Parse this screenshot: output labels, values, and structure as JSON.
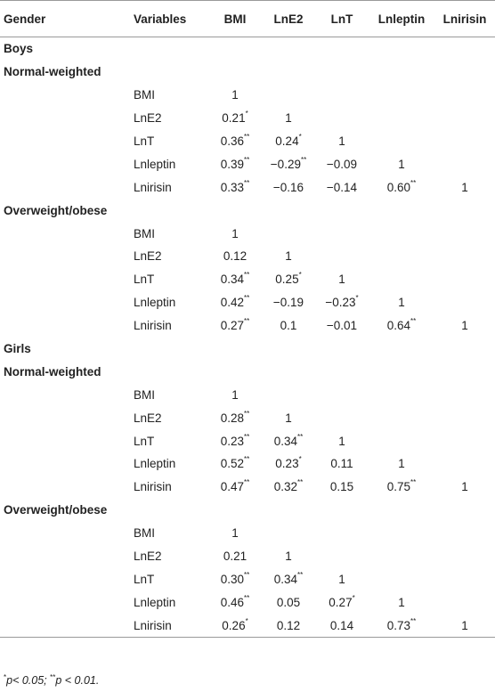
{
  "table": {
    "headers": [
      "Gender",
      "Variables",
      "BMI",
      "LnE2",
      "LnT",
      "Lnleptin",
      "Lnirisin"
    ],
    "groups": [
      {
        "gender": "Boys",
        "subgroups": [
          {
            "label": "Normal-weighted",
            "rows": [
              {
                "variable": "BMI",
                "cells": [
                  {
                    "v": "1",
                    "s": ""
                  },
                  {
                    "v": "",
                    "s": ""
                  },
                  {
                    "v": "",
                    "s": ""
                  },
                  {
                    "v": "",
                    "s": ""
                  },
                  {
                    "v": "",
                    "s": ""
                  }
                ]
              },
              {
                "variable": "LnE2",
                "cells": [
                  {
                    "v": "0.21",
                    "s": "*"
                  },
                  {
                    "v": "1",
                    "s": ""
                  },
                  {
                    "v": "",
                    "s": ""
                  },
                  {
                    "v": "",
                    "s": ""
                  },
                  {
                    "v": "",
                    "s": ""
                  }
                ]
              },
              {
                "variable": "LnT",
                "cells": [
                  {
                    "v": "0.36",
                    "s": "**"
                  },
                  {
                    "v": "0.24",
                    "s": "*"
                  },
                  {
                    "v": "1",
                    "s": ""
                  },
                  {
                    "v": "",
                    "s": ""
                  },
                  {
                    "v": "",
                    "s": ""
                  }
                ]
              },
              {
                "variable": "Lnleptin",
                "cells": [
                  {
                    "v": "0.39",
                    "s": "**"
                  },
                  {
                    "v": "−0.29",
                    "s": "**"
                  },
                  {
                    "v": "−0.09",
                    "s": ""
                  },
                  {
                    "v": "1",
                    "s": ""
                  },
                  {
                    "v": "",
                    "s": ""
                  }
                ]
              },
              {
                "variable": "Lnirisin",
                "cells": [
                  {
                    "v": "0.33",
                    "s": "**"
                  },
                  {
                    "v": "−0.16",
                    "s": ""
                  },
                  {
                    "v": "−0.14",
                    "s": ""
                  },
                  {
                    "v": "0.60",
                    "s": "**"
                  },
                  {
                    "v": "1",
                    "s": ""
                  }
                ]
              }
            ]
          },
          {
            "label": "Overweight/obese",
            "rows": [
              {
                "variable": "BMI",
                "cells": [
                  {
                    "v": "1",
                    "s": ""
                  },
                  {
                    "v": "",
                    "s": ""
                  },
                  {
                    "v": "",
                    "s": ""
                  },
                  {
                    "v": "",
                    "s": ""
                  },
                  {
                    "v": "",
                    "s": ""
                  }
                ]
              },
              {
                "variable": "LnE2",
                "cells": [
                  {
                    "v": "0.12",
                    "s": ""
                  },
                  {
                    "v": "1",
                    "s": ""
                  },
                  {
                    "v": "",
                    "s": ""
                  },
                  {
                    "v": "",
                    "s": ""
                  },
                  {
                    "v": "",
                    "s": ""
                  }
                ]
              },
              {
                "variable": "LnT",
                "cells": [
                  {
                    "v": "0.34",
                    "s": "**"
                  },
                  {
                    "v": "0.25",
                    "s": "*"
                  },
                  {
                    "v": "1",
                    "s": ""
                  },
                  {
                    "v": "",
                    "s": ""
                  },
                  {
                    "v": "",
                    "s": ""
                  }
                ]
              },
              {
                "variable": "Lnleptin",
                "cells": [
                  {
                    "v": "0.42",
                    "s": "**"
                  },
                  {
                    "v": "−0.19",
                    "s": ""
                  },
                  {
                    "v": "−0.23",
                    "s": "*"
                  },
                  {
                    "v": "1",
                    "s": ""
                  },
                  {
                    "v": "",
                    "s": ""
                  }
                ]
              },
              {
                "variable": "Lnirisin",
                "cells": [
                  {
                    "v": "0.27",
                    "s": "**"
                  },
                  {
                    "v": "0.1",
                    "s": ""
                  },
                  {
                    "v": "−0.01",
                    "s": ""
                  },
                  {
                    "v": "0.64",
                    "s": "**"
                  },
                  {
                    "v": "1",
                    "s": ""
                  }
                ]
              }
            ]
          }
        ]
      },
      {
        "gender": "Girls",
        "subgroups": [
          {
            "label": "Normal-weighted",
            "rows": [
              {
                "variable": "BMI",
                "cells": [
                  {
                    "v": "1",
                    "s": ""
                  },
                  {
                    "v": "",
                    "s": ""
                  },
                  {
                    "v": "",
                    "s": ""
                  },
                  {
                    "v": "",
                    "s": ""
                  },
                  {
                    "v": "",
                    "s": ""
                  }
                ]
              },
              {
                "variable": "LnE2",
                "cells": [
                  {
                    "v": "0.28",
                    "s": "**"
                  },
                  {
                    "v": "1",
                    "s": ""
                  },
                  {
                    "v": "",
                    "s": ""
                  },
                  {
                    "v": "",
                    "s": ""
                  },
                  {
                    "v": "",
                    "s": ""
                  }
                ]
              },
              {
                "variable": "LnT",
                "cells": [
                  {
                    "v": "0.23",
                    "s": "**"
                  },
                  {
                    "v": "0.34",
                    "s": "**"
                  },
                  {
                    "v": "1",
                    "s": ""
                  },
                  {
                    "v": "",
                    "s": ""
                  },
                  {
                    "v": "",
                    "s": ""
                  }
                ]
              },
              {
                "variable": "Lnleptin",
                "cells": [
                  {
                    "v": "0.52",
                    "s": "**"
                  },
                  {
                    "v": "0.23",
                    "s": "*"
                  },
                  {
                    "v": "0.11",
                    "s": ""
                  },
                  {
                    "v": "1",
                    "s": ""
                  },
                  {
                    "v": "",
                    "s": ""
                  }
                ]
              },
              {
                "variable": "Lnirisin",
                "cells": [
                  {
                    "v": "0.47",
                    "s": "**"
                  },
                  {
                    "v": "0.32",
                    "s": "**"
                  },
                  {
                    "v": "0.15",
                    "s": ""
                  },
                  {
                    "v": "0.75",
                    "s": "**"
                  },
                  {
                    "v": "1",
                    "s": ""
                  }
                ]
              }
            ]
          },
          {
            "label": "Overweight/obese",
            "rows": [
              {
                "variable": "BMI",
                "cells": [
                  {
                    "v": "1",
                    "s": ""
                  },
                  {
                    "v": "",
                    "s": ""
                  },
                  {
                    "v": "",
                    "s": ""
                  },
                  {
                    "v": "",
                    "s": ""
                  },
                  {
                    "v": "",
                    "s": ""
                  }
                ]
              },
              {
                "variable": "LnE2",
                "cells": [
                  {
                    "v": "0.21",
                    "s": ""
                  },
                  {
                    "v": "1",
                    "s": ""
                  },
                  {
                    "v": "",
                    "s": ""
                  },
                  {
                    "v": "",
                    "s": ""
                  },
                  {
                    "v": "",
                    "s": ""
                  }
                ]
              },
              {
                "variable": "LnT",
                "cells": [
                  {
                    "v": "0.30",
                    "s": "**"
                  },
                  {
                    "v": "0.34",
                    "s": "**"
                  },
                  {
                    "v": "1",
                    "s": ""
                  },
                  {
                    "v": "",
                    "s": ""
                  },
                  {
                    "v": "",
                    "s": ""
                  }
                ]
              },
              {
                "variable": "Lnleptin",
                "cells": [
                  {
                    "v": "0.46",
                    "s": "**"
                  },
                  {
                    "v": "0.05",
                    "s": ""
                  },
                  {
                    "v": "0.27",
                    "s": "*"
                  },
                  {
                    "v": "1",
                    "s": ""
                  },
                  {
                    "v": "",
                    "s": ""
                  }
                ]
              },
              {
                "variable": "Lnirisin",
                "cells": [
                  {
                    "v": "0.26",
                    "s": "*"
                  },
                  {
                    "v": "0.12",
                    "s": ""
                  },
                  {
                    "v": "0.14",
                    "s": ""
                  },
                  {
                    "v": "0.73",
                    "s": "**"
                  },
                  {
                    "v": "1",
                    "s": ""
                  }
                ]
              }
            ]
          }
        ]
      }
    ]
  },
  "footnote": {
    "mark1": "*",
    "text1": "p< 0.05; ",
    "mark2": "**",
    "text2": "p < 0.01."
  }
}
